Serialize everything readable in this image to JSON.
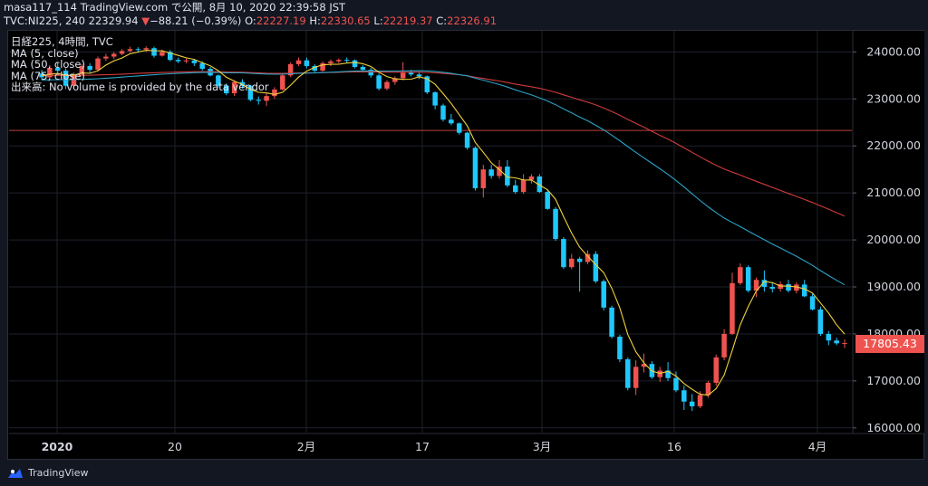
{
  "header": {
    "publisher": "masa117_114 TradingView.com で公開, 8月 10, 2020 22:39:58 JST",
    "symbol": "TVC:NI225, 240",
    "last": "22329.94",
    "change": "−88.21 (−0.39%)",
    "o_label": "O:",
    "o_value": "22227.19",
    "h_label": "H:",
    "h_value": "22330.65",
    "l_label": "L:",
    "l_value": "22219.37",
    "c_label": "C:",
    "c_value": "22326.91",
    "down_arrow": "▼"
  },
  "legend": {
    "title": "日経225, 4時間, TVC",
    "ma5": "MA (5, close)",
    "ma50": "MA (50, close)",
    "ma75": "MA (75, close)",
    "volume_note": "出来高: No volume is provided by the data vendor"
  },
  "price_tag": "17805.43",
  "footer": {
    "brand": "TradingView"
  },
  "colors": {
    "up": "#26a69a",
    "up_candle": "#1ec8ff",
    "down": "#ef5350",
    "ma5": "#f2d13a",
    "ma50": "#2aa3c7",
    "ma75": "#d13b3b",
    "bg": "#000000",
    "grid": "#1e222d"
  },
  "chart_data": {
    "type": "candlestick",
    "y_axis": {
      "min": 15900,
      "max": 24450,
      "ticks": [
        "24000.00",
        "23000.00",
        "22000.00",
        "21000.00",
        "20000.00",
        "19000.00",
        "18000.00",
        "17000.00",
        "16000.00"
      ]
    },
    "x_axis": {
      "labels": [
        "2020",
        "20",
        "2月",
        "17",
        "3月",
        "16",
        "4月"
      ]
    },
    "horizontal_line": 22330,
    "candles": [
      [
        23540,
        23620,
        23410,
        23460
      ],
      [
        23460,
        23720,
        23400,
        23660
      ],
      [
        23660,
        23780,
        23560,
        23600
      ],
      [
        23600,
        23650,
        23210,
        23280
      ],
      [
        23280,
        23560,
        23230,
        23520
      ],
      [
        23520,
        23740,
        23480,
        23700
      ],
      [
        23700,
        23760,
        23550,
        23620
      ],
      [
        23620,
        23900,
        23600,
        23860
      ],
      [
        23860,
        23960,
        23810,
        23900
      ],
      [
        23900,
        24000,
        23850,
        23960
      ],
      [
        23960,
        24060,
        23930,
        24020
      ],
      [
        24020,
        24110,
        23990,
        24060
      ],
      [
        24060,
        24100,
        23980,
        24050
      ],
      [
        24050,
        24120,
        24000,
        24080
      ],
      [
        24080,
        24110,
        23880,
        23920
      ],
      [
        23920,
        24050,
        23900,
        24000
      ],
      [
        24000,
        24040,
        23800,
        23830
      ],
      [
        23830,
        23880,
        23760,
        23800
      ],
      [
        23800,
        23860,
        23760,
        23820
      ],
      [
        23820,
        23850,
        23700,
        23760
      ],
      [
        23760,
        23800,
        23600,
        23640
      ],
      [
        23640,
        23680,
        23480,
        23500
      ],
      [
        23500,
        23520,
        23240,
        23280
      ],
      [
        23280,
        23330,
        23080,
        23120
      ],
      [
        23120,
        23400,
        23060,
        23360
      ],
      [
        23360,
        23420,
        23220,
        23280
      ],
      [
        23280,
        23300,
        22950,
        22980
      ],
      [
        22980,
        23050,
        22880,
        22960
      ],
      [
        22960,
        23120,
        22850,
        23060
      ],
      [
        23060,
        23250,
        23000,
        23200
      ],
      [
        23200,
        23550,
        23180,
        23500
      ],
      [
        23500,
        23780,
        23460,
        23740
      ],
      [
        23740,
        23880,
        23700,
        23820
      ],
      [
        23820,
        23880,
        23650,
        23700
      ],
      [
        23700,
        23740,
        23560,
        23600
      ],
      [
        23600,
        23800,
        23580,
        23760
      ],
      [
        23760,
        23840,
        23700,
        23800
      ],
      [
        23800,
        23860,
        23760,
        23830
      ],
      [
        23830,
        23880,
        23770,
        23820
      ],
      [
        23820,
        23840,
        23650,
        23680
      ],
      [
        23680,
        23720,
        23560,
        23620
      ],
      [
        23620,
        23660,
        23450,
        23500
      ],
      [
        23500,
        23540,
        23180,
        23220
      ],
      [
        23220,
        23400,
        23180,
        23360
      ],
      [
        23360,
        23480,
        23300,
        23440
      ],
      [
        23440,
        23780,
        23400,
        23560
      ],
      [
        23560,
        23620,
        23480,
        23520
      ],
      [
        23520,
        23560,
        23420,
        23480
      ],
      [
        23480,
        23500,
        23100,
        23140
      ],
      [
        23140,
        23160,
        22780,
        22860
      ],
      [
        22860,
        22900,
        22520,
        22560
      ],
      [
        22560,
        22680,
        22440,
        22480
      ],
      [
        22480,
        22500,
        22240,
        22280
      ],
      [
        22280,
        22300,
        21920,
        21960
      ],
      [
        21960,
        21990,
        21050,
        21100
      ],
      [
        21100,
        21600,
        20900,
        21500
      ],
      [
        21500,
        21600,
        21300,
        21360
      ],
      [
        21360,
        21700,
        21300,
        21560
      ],
      [
        21560,
        21700,
        21120,
        21160
      ],
      [
        21160,
        21280,
        20980,
        21020
      ],
      [
        21020,
        21400,
        20980,
        21280
      ],
      [
        21280,
        21400,
        21200,
        21350
      ],
      [
        21350,
        21400,
        21000,
        21020
      ],
      [
        21020,
        21050,
        20640,
        20660
      ],
      [
        20660,
        20700,
        19980,
        20020
      ],
      [
        20020,
        20060,
        19380,
        19420
      ],
      [
        19420,
        19700,
        19380,
        19600
      ],
      [
        19600,
        19640,
        18900,
        19530
      ],
      [
        19530,
        19780,
        19480,
        19700
      ],
      [
        19700,
        19760,
        19080,
        19120
      ],
      [
        19120,
        19160,
        18500,
        18560
      ],
      [
        18560,
        18600,
        17900,
        17940
      ],
      [
        17940,
        17980,
        17400,
        17460
      ],
      [
        17460,
        17500,
        16800,
        16850
      ],
      [
        16850,
        17440,
        16700,
        17300
      ],
      [
        17300,
        17580,
        17180,
        17360
      ],
      [
        17360,
        17420,
        17040,
        17080
      ],
      [
        17080,
        17300,
        16980,
        17220
      ],
      [
        17220,
        17400,
        17000,
        17060
      ],
      [
        17060,
        17200,
        16760,
        16800
      ],
      [
        16800,
        16900,
        16380,
        16560
      ],
      [
        16560,
        16720,
        16360,
        16460
      ],
      [
        16460,
        16780,
        16420,
        16700
      ],
      [
        16700,
        17000,
        16640,
        16960
      ],
      [
        16960,
        17560,
        16900,
        17500
      ],
      [
        17500,
        18100,
        17440,
        18000
      ],
      [
        18000,
        19300,
        17980,
        19080
      ],
      [
        19080,
        19500,
        19040,
        19420
      ],
      [
        19420,
        19460,
        18880,
        18920
      ],
      [
        18920,
        19200,
        18780,
        19150
      ],
      [
        19150,
        19350,
        18900,
        19000
      ],
      [
        19000,
        19100,
        18880,
        18960
      ],
      [
        18960,
        19120,
        18900,
        19060
      ],
      [
        19060,
        19150,
        18880,
        18920
      ],
      [
        18920,
        19100,
        18860,
        19050
      ],
      [
        19050,
        19150,
        18780,
        18800
      ],
      [
        18800,
        18860,
        18500,
        18520
      ],
      [
        18520,
        18580,
        17960,
        18000
      ],
      [
        18000,
        18060,
        17760,
        17860
      ],
      [
        17860,
        17920,
        17760,
        17800
      ],
      [
        17800,
        17880,
        17700,
        17805
      ]
    ]
  }
}
